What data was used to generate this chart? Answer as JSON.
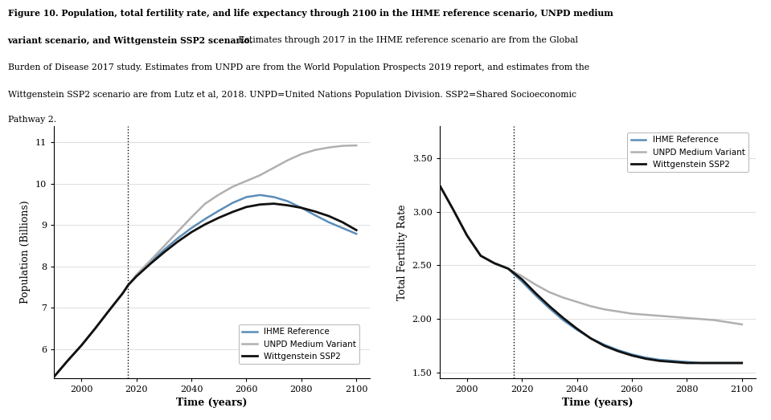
{
  "title_bold": "Figure 10. Population, total fertility rate, and life expectancy through 2100 in the IHME reference scenario, UNPD medium variant scenario, and Wittgenstein SSP2 scenario.",
  "caption_normal": "Estimates through 2017 in the IHME reference scenario are from the Global Burden of Disease 2017 study. Estimates from UNPD are from the World Population Prospects 2019 report, and estimates from the Wittgenstein SSP2 scenario are from Lutz et al, 2018. UNPD=United Nations Population Division. SSP2=Shared Socioeconomic Pathway 2.",
  "colors": {
    "ihme": "#5b8db8",
    "unpd": "#b0b0b0",
    "witt": "#111111"
  },
  "dotted_line_x": 2017,
  "xlabel": "Time (years)",
  "pop_ylabel": "Population (Billions)",
  "tfr_ylabel": "Total Fertility Rate",
  "pop_ylim": [
    5.3,
    11.4
  ],
  "pop_yticks": [
    6,
    7,
    8,
    9,
    10,
    11
  ],
  "tfr_ylim": [
    1.45,
    3.8
  ],
  "tfr_yticks": [
    1.5,
    2.0,
    2.5,
    3.0,
    3.5
  ],
  "xlim": [
    1990,
    2105
  ],
  "xticks": [
    2000,
    2020,
    2040,
    2060,
    2080,
    2100
  ],
  "legend_labels": [
    "IHME Reference",
    "UNPD Medium Variant",
    "Wittgenstein SSP2"
  ],
  "pop_data": {
    "years": [
      1990,
      1995,
      2000,
      2005,
      2010,
      2015,
      2017,
      2020,
      2025,
      2030,
      2035,
      2040,
      2045,
      2050,
      2055,
      2060,
      2065,
      2070,
      2075,
      2080,
      2085,
      2090,
      2095,
      2100
    ],
    "ihme": [
      5.33,
      5.72,
      6.09,
      6.5,
      6.93,
      7.35,
      7.55,
      7.78,
      8.1,
      8.4,
      8.68,
      8.93,
      9.15,
      9.35,
      9.54,
      9.68,
      9.73,
      9.68,
      9.58,
      9.42,
      9.24,
      9.07,
      8.93,
      8.79
    ],
    "unpd": [
      5.33,
      5.72,
      6.09,
      6.5,
      6.93,
      7.35,
      7.55,
      7.8,
      8.14,
      8.49,
      8.84,
      9.19,
      9.52,
      9.74,
      9.93,
      10.07,
      10.21,
      10.39,
      10.57,
      10.72,
      10.82,
      10.88,
      10.92,
      10.93
    ],
    "witt": [
      5.33,
      5.72,
      6.09,
      6.5,
      6.93,
      7.35,
      7.55,
      7.76,
      8.06,
      8.34,
      8.6,
      8.83,
      9.02,
      9.18,
      9.32,
      9.44,
      9.5,
      9.52,
      9.48,
      9.42,
      9.33,
      9.22,
      9.07,
      8.88
    ]
  },
  "tfr_data": {
    "years": [
      1990,
      1995,
      2000,
      2005,
      2010,
      2015,
      2017,
      2020,
      2025,
      2030,
      2035,
      2040,
      2045,
      2050,
      2055,
      2060,
      2065,
      2070,
      2075,
      2080,
      2085,
      2090,
      2095,
      2100
    ],
    "ihme": [
      3.25,
      3.02,
      2.78,
      2.59,
      2.52,
      2.47,
      2.42,
      2.35,
      2.22,
      2.1,
      1.99,
      1.9,
      1.82,
      1.76,
      1.71,
      1.67,
      1.64,
      1.62,
      1.61,
      1.6,
      1.59,
      1.59,
      1.59,
      1.59
    ],
    "unpd": [
      3.25,
      3.02,
      2.78,
      2.59,
      2.52,
      2.47,
      2.44,
      2.4,
      2.32,
      2.25,
      2.2,
      2.16,
      2.12,
      2.09,
      2.07,
      2.05,
      2.04,
      2.03,
      2.02,
      2.01,
      2.0,
      1.99,
      1.97,
      1.95
    ],
    "witt": [
      3.25,
      3.02,
      2.78,
      2.59,
      2.52,
      2.47,
      2.43,
      2.37,
      2.24,
      2.12,
      2.01,
      1.91,
      1.82,
      1.75,
      1.7,
      1.66,
      1.63,
      1.61,
      1.6,
      1.59,
      1.59,
      1.59,
      1.59,
      1.59
    ]
  }
}
